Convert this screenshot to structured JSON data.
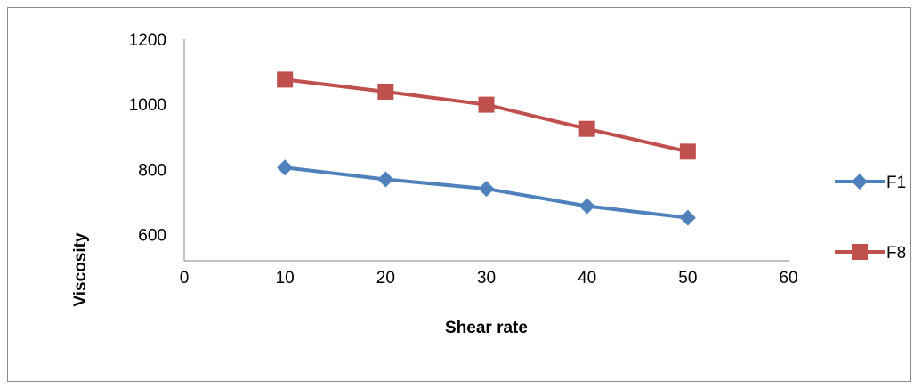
{
  "chart_data": {
    "type": "line",
    "title": "",
    "xlabel": "Shear rate",
    "ylabel": "Viscosity",
    "x": [
      10,
      20,
      30,
      40,
      50
    ],
    "xlim": [
      0,
      60
    ],
    "ylim": [
      520,
      1200
    ],
    "x_ticks": [
      "0",
      "10",
      "20",
      "30",
      "40",
      "50",
      "60"
    ],
    "y_ticks": [
      "600",
      "800",
      "1000",
      "1200"
    ],
    "grid": false,
    "legend_position": "right",
    "series": [
      {
        "name": "F1",
        "values": [
          806,
          770,
          741,
          688,
          652
        ],
        "color": "#4f81bd",
        "marker": "diamond"
      },
      {
        "name": "F8",
        "values": [
          1076,
          1039,
          999,
          925,
          855
        ],
        "color": "#c0504d",
        "marker": "square"
      }
    ]
  }
}
